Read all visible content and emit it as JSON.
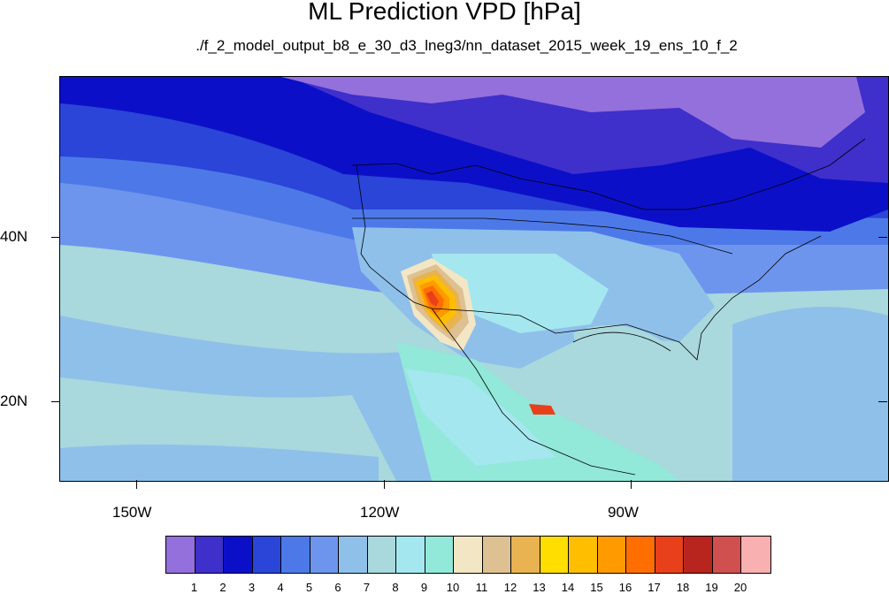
{
  "title": "ML Prediction VPD [hPa]",
  "subtitle": "./f_2_model_output_b8_e_30_d3_lneg3/nn_dataset_2015_week_19_ens_10_f_2",
  "axes": {
    "y_labels": [
      "40N",
      "20N"
    ],
    "x_labels": [
      "150W",
      "120W",
      "90W"
    ]
  },
  "colorbar": {
    "labels": [
      "1",
      "2",
      "3",
      "4",
      "5",
      "6",
      "7",
      "8",
      "9",
      "10",
      "11",
      "12",
      "13",
      "14",
      "15",
      "16",
      "17",
      "18",
      "19",
      "20"
    ],
    "colors": [
      "#9370DB",
      "#3F2FCB",
      "#0C0FC8",
      "#2A45D8",
      "#4D79E8",
      "#6E95ED",
      "#8FC0EA",
      "#A9D8DD",
      "#A4E7EF",
      "#92E8D9",
      "#F3E6C4",
      "#DDC193",
      "#E8B350",
      "#FFDE00",
      "#FFBE00",
      "#FF9A00",
      "#FF6E00",
      "#E8401A",
      "#B8241E",
      "#D05050",
      "#F8B0B0"
    ]
  }
}
